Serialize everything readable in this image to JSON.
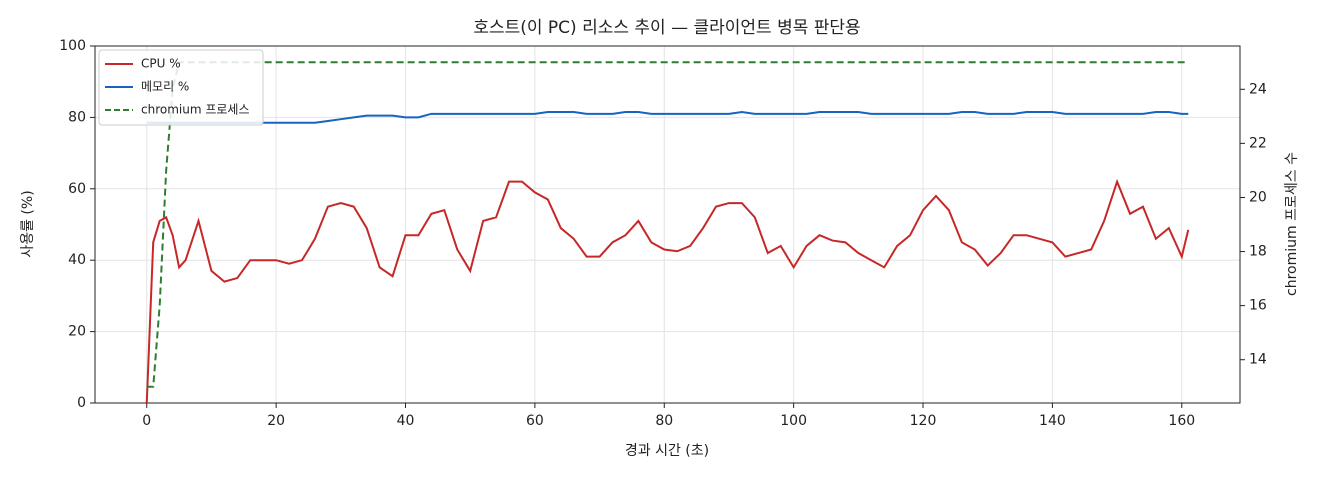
{
  "chart_data": {
    "type": "line",
    "title": "호스트(이 PC) 리소스 추이 — 클라이언트 병목 판단용",
    "x_label": "경과 시간 (초)",
    "y_label": "사용률 (%)",
    "y2_label": "chromium 프로세스 수",
    "x": [
      0,
      1,
      2,
      3,
      4,
      5,
      6,
      8,
      10,
      12,
      14,
      16,
      18,
      20,
      22,
      24,
      26,
      28,
      30,
      32,
      34,
      36,
      38,
      40,
      42,
      44,
      46,
      48,
      50,
      52,
      54,
      56,
      58,
      60,
      62,
      64,
      66,
      68,
      70,
      72,
      74,
      76,
      78,
      80,
      82,
      84,
      86,
      88,
      90,
      92,
      94,
      96,
      98,
      100,
      102,
      104,
      106,
      108,
      110,
      112,
      114,
      116,
      118,
      120,
      122,
      124,
      126,
      128,
      130,
      132,
      134,
      136,
      138,
      140,
      142,
      144,
      146,
      148,
      150,
      152,
      154,
      156,
      158,
      160,
      161
    ],
    "series": [
      {
        "name": "CPU %",
        "color": "#c62828",
        "linestyle": "solid",
        "values": [
          0,
          45,
          51,
          52,
          47,
          38,
          40,
          51,
          37,
          34,
          35,
          40,
          40,
          40,
          39,
          40,
          46,
          55,
          56,
          55,
          49,
          38,
          35.5,
          47,
          47,
          53,
          54,
          43,
          37,
          51,
          52,
          62,
          62,
          59,
          57,
          49,
          46,
          41,
          41,
          45,
          47,
          51,
          45,
          43,
          42.5,
          44,
          49,
          55,
          56,
          56,
          52,
          42,
          44,
          38,
          44,
          47,
          45.5,
          45,
          42,
          40,
          38,
          44,
          47,
          54,
          58,
          54,
          45,
          43,
          38.5,
          42,
          47,
          47,
          46,
          45,
          41,
          42,
          43,
          51,
          62,
          53,
          55,
          46,
          49,
          41,
          48.5
        ]
      },
      {
        "name": "메모리 %",
        "color": "#1565c0",
        "linestyle": "solid",
        "values": [
          78.5,
          78.5,
          78.5,
          78.5,
          78.5,
          78.5,
          78.5,
          78.5,
          78.5,
          78.5,
          78.5,
          78.5,
          78.5,
          78.5,
          78.5,
          78.5,
          78.5,
          79,
          79.5,
          80,
          80.5,
          80.5,
          80.5,
          80,
          80,
          81,
          81,
          81,
          81,
          81,
          81,
          81,
          81,
          81,
          81.5,
          81.5,
          81.5,
          81,
          81,
          81,
          81.5,
          81.5,
          81,
          81,
          81,
          81,
          81,
          81,
          81,
          81.5,
          81,
          81,
          81,
          81,
          81,
          81.5,
          81.5,
          81.5,
          81.5,
          81,
          81,
          81,
          81,
          81,
          81,
          81,
          81.5,
          81.5,
          81,
          81,
          81,
          81.5,
          81.5,
          81.5,
          81,
          81,
          81,
          81,
          81,
          81,
          81,
          81.5,
          81.5,
          81,
          81
        ]
      },
      {
        "name": "chromium 프로세스",
        "color": "#2e7d32",
        "linestyle": "dashed",
        "axis": "y2",
        "values": [
          13,
          13,
          16,
          21,
          24,
          25,
          25,
          25,
          25,
          25,
          25,
          25,
          25,
          25,
          25,
          25,
          25,
          25,
          25,
          25,
          25,
          25,
          25,
          25,
          25,
          25,
          25,
          25,
          25,
          25,
          25,
          25,
          25,
          25,
          25,
          25,
          25,
          25,
          25,
          25,
          25,
          25,
          25,
          25,
          25,
          25,
          25,
          25,
          25,
          25,
          25,
          25,
          25,
          25,
          25,
          25,
          25,
          25,
          25,
          25,
          25,
          25,
          25,
          25,
          25,
          25,
          25,
          25,
          25,
          25,
          25,
          25,
          25,
          25,
          25,
          25,
          25,
          25,
          25,
          25,
          25,
          25,
          25,
          25,
          25
        ]
      }
    ],
    "xlim": [
      -8,
      169
    ],
    "xticks": [
      0,
      20,
      40,
      60,
      80,
      100,
      120,
      140,
      160
    ],
    "ylim": [
      0,
      100
    ],
    "yticks": [
      0,
      20,
      40,
      60,
      80,
      100
    ],
    "y2lim": [
      12.4,
      25.6
    ],
    "y2ticks": [
      14,
      16,
      18,
      20,
      22,
      24
    ],
    "grid": true,
    "legend": "upper-left"
  }
}
